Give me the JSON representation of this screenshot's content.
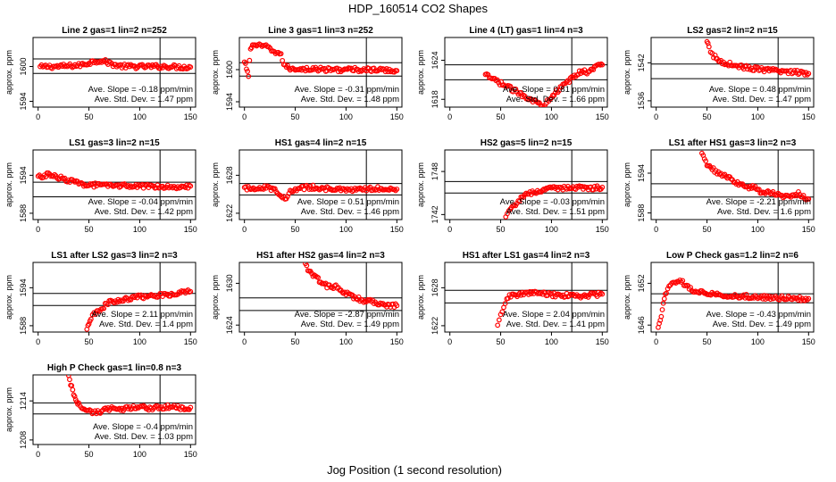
{
  "title": "HDP_160514  CO2 Shapes",
  "xlabel": "Jog Position (1 second resolution)",
  "colors": {
    "points": "#ff0000",
    "lines": "#000000"
  },
  "chart_data": [
    {
      "type": "scatter",
      "title": "Line 2 gas=1 lin=2 n=252",
      "ylabel": "approx. ppm",
      "yticks": [
        "1594",
        "1600"
      ],
      "ytick_values": [
        1594,
        1600
      ],
      "ylim": [
        1593,
        1605
      ],
      "xlim": [
        -5,
        155
      ],
      "xticks": [
        0,
        50,
        100,
        150
      ],
      "hlines": [
        1601.3,
        1598.8
      ],
      "vline": 120,
      "stats": [
        "Ave. Slope = -0.18  ppm/min",
        "Ave. Std. Dev. = 1.47  ppm"
      ],
      "series": [
        {
          "x": [
            2,
            10,
            20,
            30,
            40,
            50,
            55,
            60,
            65,
            70,
            75,
            80,
            90,
            100,
            110,
            120,
            130,
            140,
            150
          ],
          "y": [
            1599.9,
            1600.0,
            1600.0,
            1600.1,
            1600.2,
            1600.6,
            1600.9,
            1601.0,
            1600.9,
            1600.6,
            1600.3,
            1600.1,
            1600.0,
            1600.0,
            1600.0,
            1600.0,
            1600.0,
            1599.9,
            1599.9
          ]
        }
      ]
    },
    {
      "type": "scatter",
      "title": "Line 3 gas=1 lin=3 n=252",
      "ylabel": "approx. ppm",
      "yticks": [
        "1594",
        "1600"
      ],
      "ytick_values": [
        1594,
        1600
      ],
      "ylim": [
        1593,
        1606
      ],
      "xlim": [
        -5,
        155
      ],
      "xticks": [
        0,
        50,
        100,
        150
      ],
      "hlines": [
        1601.3,
        1598.8
      ],
      "vline": 120,
      "stats": [
        "Ave. Slope = -0.31  ppm/min",
        "Ave. Std. Dev. = 1.48  ppm"
      ],
      "series": [
        {
          "x": [
            0,
            2,
            4,
            6,
            8,
            12,
            16,
            20,
            24,
            28,
            32,
            36,
            40,
            45,
            50,
            60,
            70,
            80,
            90,
            100,
            110,
            120,
            130,
            140,
            150
          ],
          "y": [
            1601.3,
            1600.3,
            1599.0,
            1603.8,
            1604.7,
            1604.6,
            1604.3,
            1604.4,
            1604.0,
            1603.5,
            1603.2,
            1602.6,
            1600.6,
            1600.2,
            1600.2,
            1600.1,
            1600.1,
            1600.0,
            1600.0,
            1600.0,
            1600.0,
            1600.0,
            1599.9,
            1599.9,
            1599.8
          ]
        }
      ]
    },
    {
      "type": "scatter",
      "title": "Line 4 (LT) gas=1 lin=4 n=3",
      "ylabel": "approx. ppm",
      "yticks": [
        "1618",
        "1624"
      ],
      "ytick_values": [
        1618,
        1624
      ],
      "ylim": [
        1616.8,
        1627.5
      ],
      "xlim": [
        -5,
        155
      ],
      "xticks": [
        0,
        50,
        100,
        150
      ],
      "hlines": [
        1623.3,
        1621.0
      ],
      "vline": 120,
      "stats": [
        "Ave. Slope = 0.81  ppm/min",
        "Ave. Std. Dev. = 1.66  ppm"
      ],
      "series": [
        {
          "x": [
            35,
            92,
            96,
            100,
            105,
            110,
            115,
            120,
            125,
            130,
            135,
            140,
            145,
            148,
            150
          ],
          "y": [
            1621.7,
            1617.0,
            1617.8,
            1618.5,
            1619.2,
            1619.8,
            1620.6,
            1621.2,
            1621.8,
            1622.4,
            1622.2,
            1622.6,
            1623.1,
            1623.4,
            1623.3
          ]
        }
      ]
    },
    {
      "type": "scatter",
      "title": "LS2 gas=2 lin=2 n=15",
      "ylabel": "approx. ppm",
      "yticks": [
        "1536",
        "1542"
      ],
      "ytick_values": [
        1536,
        1542
      ],
      "ylim": [
        1535,
        1546
      ],
      "xlim": [
        -5,
        155
      ],
      "xticks": [
        0,
        50,
        100,
        150
      ],
      "hlines": [
        1541.8,
        1539.5
      ],
      "vline": 120,
      "stats": [
        "Ave. Slope = 0.48  ppm/min",
        "Ave. Std. Dev. = 1.47  ppm"
      ],
      "series": [
        {
          "x": [
            50,
            52,
            55,
            58,
            60,
            65,
            70,
            75,
            80,
            90,
            100,
            110,
            120,
            130,
            140,
            150
          ],
          "y": [
            1545.2,
            1544.4,
            1543.3,
            1542.9,
            1542.5,
            1542.1,
            1541.9,
            1541.7,
            1541.5,
            1541.2,
            1541.0,
            1540.8,
            1540.7,
            1540.6,
            1540.5,
            1540.3
          ]
        }
      ]
    },
    {
      "type": "scatter",
      "title": "LS1 gas=3 lin=2 n=15",
      "ylabel": "approx. ppm",
      "yticks": [
        "1588",
        "1594"
      ],
      "ytick_values": [
        1588,
        1594
      ],
      "ylim": [
        1587,
        1598
      ],
      "xlim": [
        -5,
        155
      ],
      "xticks": [
        0,
        50,
        100,
        150
      ],
      "hlines": [
        1592.9,
        1590.6
      ],
      "vline": 120,
      "stats": [
        "Ave. Slope = -0.04  ppm/min",
        "Ave. Std. Dev. = 1.42  ppm"
      ],
      "series": [
        {
          "x": [
            0,
            5,
            10,
            20,
            30,
            40,
            50,
            60,
            70,
            80,
            90,
            100,
            110,
            120,
            130,
            140,
            150
          ],
          "y": [
            1593.7,
            1593.9,
            1594.1,
            1593.7,
            1593.2,
            1592.7,
            1592.5,
            1592.4,
            1592.3,
            1592.4,
            1592.3,
            1592.2,
            1592.3,
            1592.3,
            1592.2,
            1592.2,
            1592.3
          ]
        }
      ]
    },
    {
      "type": "scatter",
      "title": "HS1 gas=4 lin=2 n=15",
      "ylabel": "approx. ppm",
      "yticks": [
        "1622",
        "1628"
      ],
      "ytick_values": [
        1622,
        1628
      ],
      "ylim": [
        1621,
        1632
      ],
      "xlim": [
        -5,
        155
      ],
      "xticks": [
        0,
        50,
        100,
        150
      ],
      "hlines": [
        1626.7,
        1624.9
      ],
      "vline": 120,
      "stats": [
        "Ave. Slope = 0.51  ppm/min",
        "Ave. Std. Dev. = 1.46  ppm"
      ],
      "series": [
        {
          "x": [
            0,
            10,
            20,
            30,
            35,
            40,
            45,
            50,
            60,
            70,
            80,
            90,
            100,
            110,
            120,
            130,
            140,
            150
          ],
          "y": [
            1625.9,
            1626.0,
            1626.1,
            1625.8,
            1625.1,
            1624.2,
            1625.3,
            1625.7,
            1626.1,
            1626.1,
            1625.9,
            1625.8,
            1625.6,
            1625.7,
            1625.8,
            1625.9,
            1626.0,
            1625.8
          ]
        }
      ]
    },
    {
      "type": "scatter",
      "title": "HS2 gas=5 lin=2 n=15",
      "ylabel": "approx. ppm",
      "yticks": [
        "1742",
        "1748"
      ],
      "ytick_values": [
        1742,
        1748
      ],
      "ylim": [
        1741.3,
        1751
      ],
      "xlim": [
        -5,
        155
      ],
      "xticks": [
        0,
        50,
        100,
        150
      ],
      "hlines": [
        1746.6,
        1745.0
      ],
      "vline": 120,
      "stats": [
        "Ave. Slope = -0.03  ppm/min",
        "Ave. Std. Dev. = 1.51  ppm"
      ],
      "series": [
        {
          "x": [
            55,
            58,
            62,
            66,
            70,
            75,
            80,
            90,
            100,
            110,
            120,
            130,
            140,
            150
          ],
          "y": [
            1741.5,
            1742.3,
            1743.1,
            1743.7,
            1744.2,
            1744.7,
            1745.0,
            1745.4,
            1745.6,
            1745.7,
            1745.8,
            1745.8,
            1745.7,
            1745.8
          ]
        }
      ]
    },
    {
      "type": "scatter",
      "title": "LS1 after HS1 gas=3 lin=2 n=3",
      "ylabel": "approx. ppm",
      "yticks": [
        "1588",
        "1594"
      ],
      "ytick_values": [
        1588,
        1594
      ],
      "ylim": [
        1587,
        1597.5
      ],
      "xlim": [
        -5,
        155
      ],
      "xticks": [
        0,
        50,
        100,
        150
      ],
      "hlines": [
        1592.4,
        1590.4
      ],
      "vline": 120,
      "stats": [
        "Ave. Slope = -2.21  ppm/min",
        "Ave. Std. Dev. = 1.6  ppm"
      ],
      "series": [
        {
          "x": [
            45,
            50,
            55,
            60,
            65,
            70,
            75,
            80,
            85,
            90,
            95,
            100,
            105,
            110,
            120,
            130,
            140,
            150
          ],
          "y": [
            1596.8,
            1595.4,
            1594.6,
            1594.2,
            1593.6,
            1593.5,
            1592.9,
            1592.5,
            1592.1,
            1591.7,
            1592.1,
            1591.5,
            1591.0,
            1591.3,
            1590.7,
            1590.5,
            1590.9,
            1590.1
          ]
        }
      ]
    },
    {
      "type": "scatter",
      "title": "LS1 after LS2 gas=3 lin=2 n=3",
      "ylabel": "approx. ppm",
      "yticks": [
        "1588",
        "1594"
      ],
      "ytick_values": [
        1588,
        1594
      ],
      "ylim": [
        1587,
        1598
      ],
      "xlim": [
        -5,
        155
      ],
      "xticks": [
        0,
        50,
        100,
        150
      ],
      "hlines": [
        1593.1,
        1591.2
      ],
      "vline": 120,
      "stats": [
        "Ave. Slope = 2.11  ppm/min",
        "Ave. Std. Dev. = 1.4  ppm"
      ],
      "series": [
        {
          "x": [
            48,
            50,
            52,
            55,
            58,
            62,
            66,
            70,
            75,
            80,
            90,
            100,
            110,
            120,
            130,
            140,
            150
          ],
          "y": [
            1587.2,
            1588.4,
            1589.1,
            1589.8,
            1590.3,
            1590.7,
            1591.2,
            1591.7,
            1591.9,
            1592.0,
            1592.3,
            1592.6,
            1592.6,
            1592.9,
            1593.0,
            1593.2,
            1593.4
          ]
        }
      ]
    },
    {
      "type": "scatter",
      "title": "HS1 after HS2 gas=4 lin=2 n=3",
      "ylabel": "approx. ppm",
      "yticks": [
        "1624",
        "1630"
      ],
      "ytick_values": [
        1624,
        1630
      ],
      "ylim": [
        1623,
        1633
      ],
      "xlim": [
        -5,
        155
      ],
      "xticks": [
        0,
        50,
        100,
        150
      ],
      "hlines": [
        1627.9,
        1626.1
      ],
      "vline": 120,
      "stats": [
        "Ave. Slope = -2.87  ppm/min",
        "Ave. Std. Dev. = 1.49  ppm"
      ],
      "series": [
        {
          "x": [
            60,
            65,
            70,
            75,
            80,
            85,
            90,
            95,
            100,
            105,
            110,
            115,
            120,
            125,
            130,
            140,
            150
          ],
          "y": [
            1632.6,
            1631.6,
            1630.9,
            1630.2,
            1629.7,
            1629.4,
            1629.6,
            1629.0,
            1628.5,
            1628.2,
            1627.9,
            1627.6,
            1627.3,
            1627.5,
            1627.1,
            1626.9,
            1626.8
          ]
        }
      ]
    },
    {
      "type": "scatter",
      "title": "HS1 after LS1 gas=4 lin=2 n=3",
      "ylabel": "approx. ppm",
      "yticks": [
        "1622",
        "1628"
      ],
      "ytick_values": [
        1622,
        1628
      ],
      "ylim": [
        1621,
        1632
      ],
      "xlim": [
        -5,
        155
      ],
      "xticks": [
        0,
        50,
        100,
        150
      ],
      "hlines": [
        1627.6,
        1625.6
      ],
      "vline": 120,
      "stats": [
        "Ave. Slope = 2.04  ppm/min",
        "Ave. Std. Dev. = 1.41  ppm"
      ],
      "series": [
        {
          "x": [
            47,
            50,
            53,
            56,
            60,
            65,
            70,
            80,
            90,
            100,
            110,
            120,
            130,
            140,
            150
          ],
          "y": [
            1621.8,
            1623.6,
            1625.2,
            1626.4,
            1626.7,
            1626.8,
            1627.0,
            1627.2,
            1627.1,
            1626.9,
            1626.8,
            1626.8,
            1626.7,
            1626.9,
            1627.0
          ]
        }
      ]
    },
    {
      "type": "scatter",
      "title": "Low P Check gas=1.2 lin=2 n=6",
      "ylabel": "approx. ppm",
      "yticks": [
        "1646",
        "1652"
      ],
      "ytick_values": [
        1646,
        1652
      ],
      "ylim": [
        1645,
        1655
      ],
      "xlim": [
        -5,
        155
      ],
      "xticks": [
        0,
        50,
        100,
        150
      ],
      "hlines": [
        1650.5,
        1649.2
      ],
      "vline": 120,
      "stats": [
        "Ave. Slope = -0.43  ppm/min",
        "Ave. Std. Dev. = 1.49  ppm"
      ],
      "series": [
        {
          "x": [
            2,
            4,
            6,
            8,
            10,
            14,
            18,
            22,
            26,
            30,
            35,
            40,
            50,
            60,
            70,
            80,
            90,
            100,
            110,
            120,
            130,
            140,
            150
          ],
          "y": [
            1645.4,
            1646.7,
            1648.3,
            1649.8,
            1650.8,
            1651.7,
            1652.0,
            1652.3,
            1652.1,
            1651.6,
            1651.0,
            1650.7,
            1650.6,
            1650.4,
            1650.3,
            1650.2,
            1650.1,
            1650.0,
            1650.0,
            1649.9,
            1649.9,
            1649.8,
            1649.8
          ]
        }
      ]
    },
    {
      "type": "scatter",
      "title": "High P Check gas=1 lin=0.8 n=3",
      "ylabel": "approx. ppm",
      "yticks": [
        "1208",
        "1214"
      ],
      "ytick_values": [
        1208,
        1214
      ],
      "ylim": [
        1207.3,
        1218
      ],
      "xlim": [
        -5,
        155
      ],
      "xticks": [
        0,
        50,
        100,
        150
      ],
      "hlines": [
        1213.7,
        1212.0
      ],
      "vline": 120,
      "stats": [
        "Ave. Slope = -0.4  ppm/min",
        "Ave. Std. Dev. = 1.03  ppm"
      ],
      "series": [
        {
          "x": [
            30,
            32,
            34,
            36,
            38,
            40,
            44,
            48,
            52,
            56,
            60,
            65,
            70,
            80,
            90,
            100,
            110,
            120,
            130,
            140,
            150
          ],
          "y": [
            1217.6,
            1216.6,
            1215.6,
            1214.6,
            1214.0,
            1213.5,
            1213.0,
            1212.6,
            1212.3,
            1212.2,
            1212.3,
            1212.6,
            1212.8,
            1212.7,
            1212.9,
            1213.0,
            1212.9,
            1213.0,
            1213.1,
            1212.9,
            1213.0
          ]
        }
      ]
    }
  ]
}
